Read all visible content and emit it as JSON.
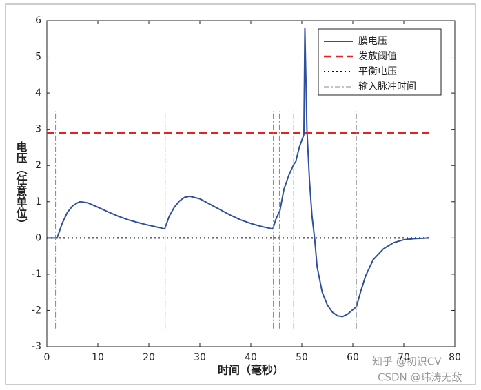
{
  "chart_data": {
    "type": "line",
    "xlabel": "时间（毫秒）",
    "ylabel": "电压（任意单位）",
    "xlim": [
      0,
      80
    ],
    "ylim": [
      -3,
      6
    ],
    "xticks": [
      0,
      10,
      20,
      30,
      40,
      50,
      60,
      70,
      80
    ],
    "yticks": [
      -3,
      -2,
      -1,
      0,
      1,
      2,
      3,
      4,
      5,
      6
    ],
    "legend": "top-right",
    "series": [
      {
        "name": "膜电压",
        "color": "#2f4f9f",
        "style": "solid",
        "x": [
          0,
          2,
          3,
          4,
          5,
          6,
          6.5,
          8,
          10,
          12,
          14,
          16,
          18,
          20,
          22,
          23.1,
          24,
          25,
          26,
          27,
          28,
          30,
          32,
          34,
          36,
          38,
          40,
          42,
          44.3,
          45,
          45.7,
          46.5,
          47.5,
          48.5,
          48.8,
          49.5,
          50,
          50.4,
          50.6,
          51,
          51.5,
          52,
          52.5,
          53,
          54,
          55,
          56,
          57,
          58,
          59,
          60,
          60.7,
          61.5,
          62.5,
          64,
          66,
          68,
          70,
          72,
          75
        ],
        "values": [
          0,
          0,
          0.4,
          0.7,
          0.88,
          0.97,
          1.0,
          0.97,
          0.85,
          0.72,
          0.6,
          0.5,
          0.42,
          0.35,
          0.29,
          0.25,
          0.6,
          0.85,
          1.02,
          1.12,
          1.15,
          1.08,
          0.93,
          0.78,
          0.63,
          0.5,
          0.4,
          0.32,
          0.25,
          0.55,
          0.75,
          1.35,
          1.75,
          2.05,
          2.1,
          2.5,
          2.7,
          2.85,
          5.8,
          3.0,
          1.6,
          0.6,
          0.0,
          -0.8,
          -1.5,
          -1.85,
          -2.05,
          -2.15,
          -2.17,
          -2.1,
          -1.98,
          -1.9,
          -1.5,
          -1.05,
          -0.6,
          -0.3,
          -0.13,
          -0.05,
          -0.02,
          0
        ]
      },
      {
        "name": "发放阈值",
        "color": "#e52222",
        "style": "dashed",
        "x": [
          0,
          75
        ],
        "values": [
          2.9,
          2.9
        ]
      },
      {
        "name": "平衡电压",
        "color": "#111111",
        "style": "dotted",
        "x": [
          0,
          75
        ],
        "values": [
          0,
          0
        ]
      },
      {
        "name": "输入脉冲时间",
        "color": "#888888",
        "style": "dashdot",
        "x": [
          1.7,
          23.2,
          44.4,
          45.6,
          48.4,
          60.7
        ],
        "y_range": [
          -2.5,
          3.5
        ]
      }
    ],
    "watermarks": [
      "知乎 @初识CV",
      "CSDN @玮涛无敌"
    ]
  }
}
